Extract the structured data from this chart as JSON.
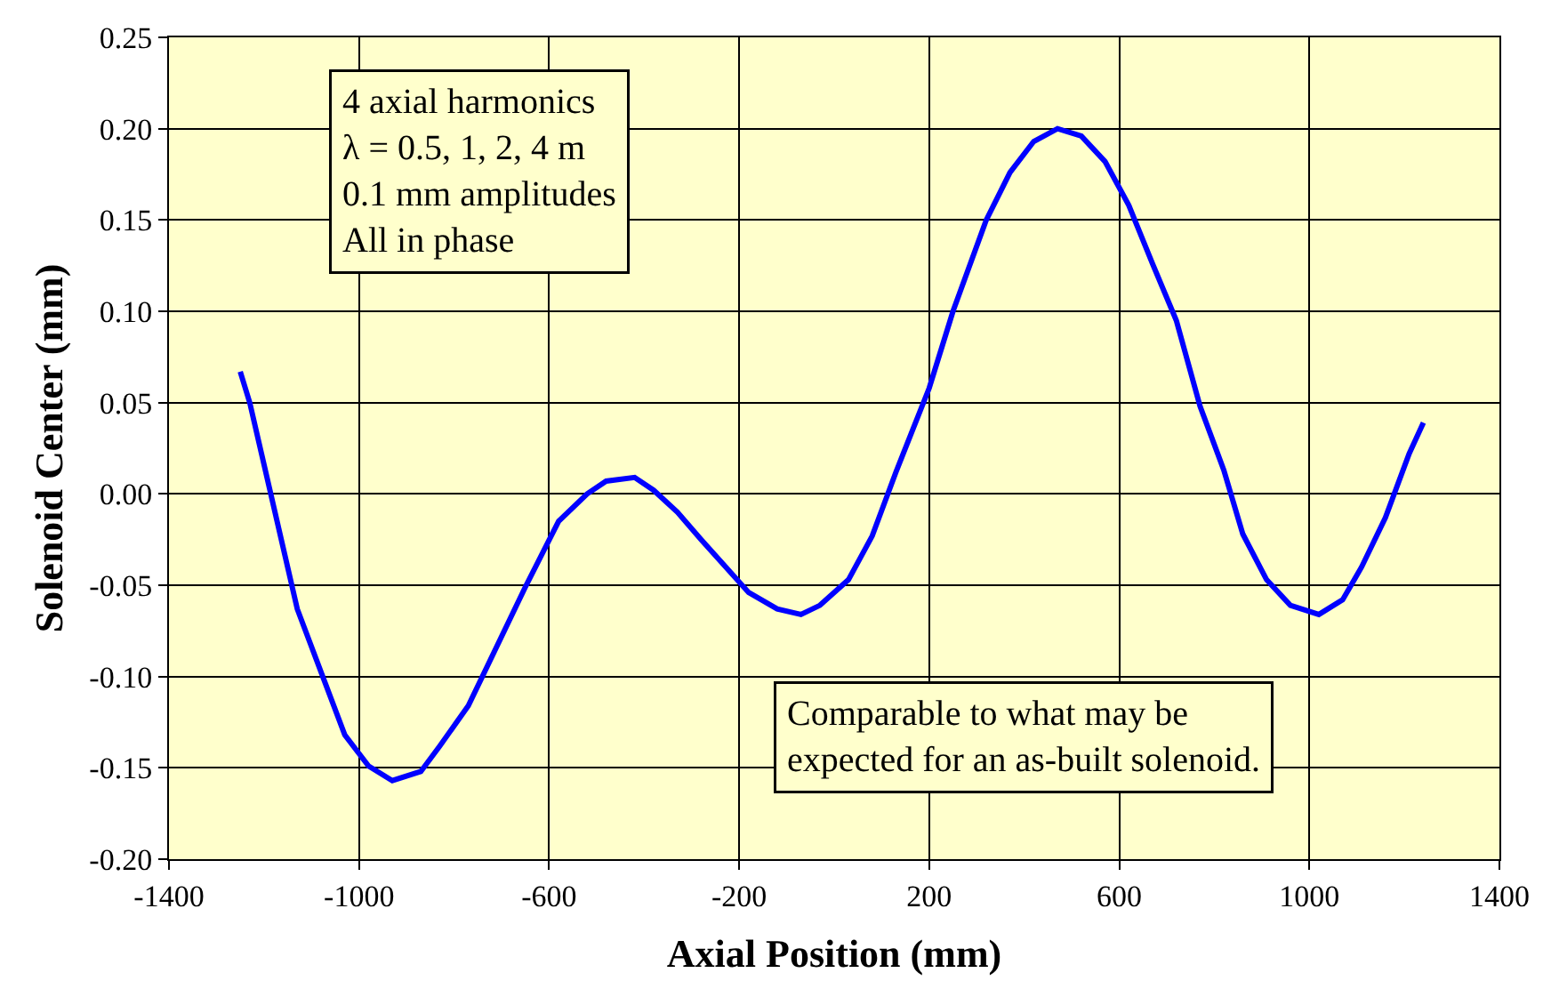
{
  "chart_data": {
    "type": "line",
    "xlabel": "Axial Position (mm)",
    "ylabel": "Solenoid Center (mm)",
    "x": [
      -1250,
      -1230,
      -1130,
      -1030,
      -980,
      -930,
      -870,
      -830,
      -770,
      -650,
      -580,
      -520,
      -480,
      -420,
      -380,
      -330,
      -280,
      -180,
      -120,
      -70,
      -30,
      30,
      80,
      130,
      200,
      250,
      320,
      370,
      420,
      470,
      520,
      570,
      620,
      670,
      720,
      770,
      820,
      860,
      910,
      960,
      1020,
      1070,
      1110,
      1160,
      1210,
      1240
    ],
    "series": [
      {
        "color": "#0000ff",
        "line_style": "solid",
        "values": [
          0.067,
          0.05,
          -0.063,
          -0.132,
          -0.149,
          -0.157,
          -0.152,
          -0.138,
          -0.116,
          -0.051,
          -0.015,
          0.0,
          0.007,
          0.009,
          0.002,
          -0.01,
          -0.025,
          -0.054,
          -0.063,
          -0.066,
          -0.061,
          -0.047,
          -0.023,
          0.012,
          0.058,
          0.1,
          0.15,
          0.176,
          0.193,
          0.2,
          0.196,
          0.182,
          0.158,
          0.126,
          0.095,
          0.048,
          0.013,
          -0.022,
          -0.047,
          -0.061,
          -0.066,
          -0.058,
          -0.04,
          -0.013,
          0.022,
          0.039
        ]
      }
    ],
    "marker": "none",
    "grid": true,
    "xlim": [
      -1400,
      1400
    ],
    "xticks": [
      -1400,
      -1000,
      -600,
      -200,
      200,
      600,
      1000,
      1400
    ],
    "ylim": [
      -0.2,
      0.25
    ],
    "yticks": [
      {
        "value": -0.2,
        "label": "-0.20"
      },
      {
        "value": -0.15,
        "label": "-0.15"
      },
      {
        "value": -0.1,
        "label": "-0.10"
      },
      {
        "value": -0.05,
        "label": "-0.05"
      },
      {
        "value": 0,
        "label": "0.00"
      },
      {
        "value": 0.05,
        "label": "0.05"
      },
      {
        "value": 0.1,
        "label": "0.10"
      },
      {
        "value": 0.15,
        "label": "0.15"
      },
      {
        "value": 0.2,
        "label": "0.20"
      },
      {
        "value": 0.25,
        "label": "0.25"
      }
    ],
    "annotations": [
      "4 axial harmonics\nλ = 0.5, 1, 2, 4 m\n0.1 mm amplitudes\nAll in phase",
      "Comparable to what may be\nexpected for an as-built solenoid."
    ]
  }
}
